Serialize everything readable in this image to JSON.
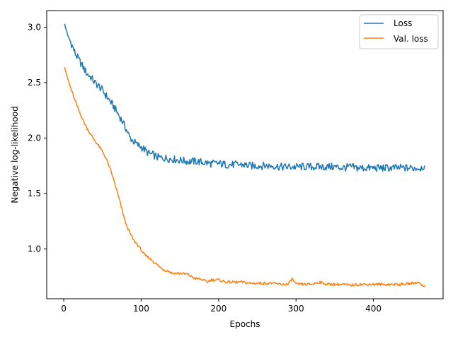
{
  "chart_data": {
    "type": "line",
    "title": "",
    "xlabel": "Epochs",
    "ylabel": "Negative log-likelihood",
    "xlim": [
      -22,
      490
    ],
    "ylim": [
      0.55,
      3.15
    ],
    "xticks": [
      0,
      100,
      200,
      300,
      400
    ],
    "yticks": [
      1.0,
      1.5,
      2.0,
      2.5,
      3.0
    ],
    "grid": false,
    "legend_position": "top-right",
    "series": [
      {
        "name": "Loss",
        "color": "#1f77b4",
        "x": [
          1,
          5,
          10,
          15,
          20,
          25,
          30,
          35,
          40,
          45,
          50,
          55,
          60,
          65,
          70,
          75,
          80,
          85,
          90,
          95,
          100,
          105,
          110,
          115,
          120,
          125,
          130,
          140,
          150,
          160,
          170,
          180,
          190,
          200,
          210,
          220,
          230,
          240,
          250,
          260,
          270,
          280,
          290,
          300,
          310,
          320,
          330,
          340,
          350,
          360,
          370,
          380,
          390,
          400,
          410,
          420,
          430,
          440,
          450,
          460,
          467
        ],
        "y": [
          3.03,
          2.93,
          2.85,
          2.76,
          2.7,
          2.64,
          2.58,
          2.55,
          2.5,
          2.47,
          2.43,
          2.38,
          2.33,
          2.28,
          2.22,
          2.16,
          2.09,
          2.01,
          1.97,
          1.94,
          1.92,
          1.89,
          1.86,
          1.85,
          1.83,
          1.82,
          1.82,
          1.81,
          1.8,
          1.79,
          1.79,
          1.78,
          1.77,
          1.77,
          1.76,
          1.76,
          1.76,
          1.75,
          1.75,
          1.75,
          1.75,
          1.74,
          1.74,
          1.74,
          1.74,
          1.74,
          1.74,
          1.74,
          1.74,
          1.73,
          1.74,
          1.73,
          1.73,
          1.73,
          1.73,
          1.73,
          1.73,
          1.73,
          1.73,
          1.73,
          1.75
        ]
      },
      {
        "name": "Val. loss",
        "color": "#ff7f0e",
        "x": [
          1,
          5,
          10,
          15,
          20,
          25,
          30,
          35,
          40,
          45,
          50,
          55,
          60,
          65,
          70,
          75,
          80,
          85,
          90,
          95,
          100,
          105,
          110,
          115,
          120,
          125,
          130,
          135,
          140,
          150,
          160,
          165,
          170,
          175,
          180,
          185,
          190,
          200,
          210,
          220,
          230,
          240,
          250,
          260,
          270,
          280,
          290,
          295,
          300,
          310,
          320,
          330,
          340,
          350,
          360,
          370,
          380,
          390,
          400,
          410,
          420,
          430,
          440,
          450,
          460,
          465,
          467
        ],
        "y": [
          2.64,
          2.54,
          2.43,
          2.33,
          2.24,
          2.16,
          2.09,
          2.03,
          1.98,
          1.93,
          1.88,
          1.81,
          1.72,
          1.61,
          1.49,
          1.36,
          1.23,
          1.15,
          1.08,
          1.04,
          0.99,
          0.94,
          0.92,
          0.89,
          0.86,
          0.83,
          0.81,
          0.8,
          0.78,
          0.78,
          0.77,
          0.75,
          0.73,
          0.73,
          0.72,
          0.7,
          0.72,
          0.72,
          0.7,
          0.7,
          0.7,
          0.69,
          0.69,
          0.69,
          0.69,
          0.68,
          0.68,
          0.73,
          0.68,
          0.68,
          0.68,
          0.7,
          0.68,
          0.68,
          0.68,
          0.67,
          0.68,
          0.68,
          0.68,
          0.68,
          0.68,
          0.68,
          0.68,
          0.69,
          0.7,
          0.65,
          0.67
        ]
      }
    ]
  }
}
